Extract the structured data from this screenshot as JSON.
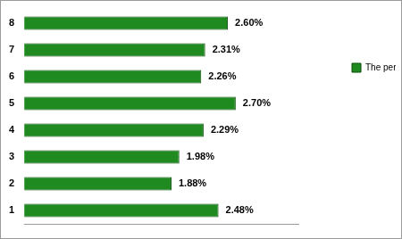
{
  "chart_data": {
    "type": "bar",
    "orientation": "horizontal",
    "categories": [
      "1",
      "2",
      "3",
      "4",
      "5",
      "6",
      "7",
      "8"
    ],
    "series": [
      {
        "name": "The percentage of profit tax in GDP",
        "color": "#1f8a1f",
        "values": [
          2.48,
          1.88,
          1.98,
          2.29,
          2.7,
          2.26,
          2.31,
          2.6
        ],
        "value_labels": [
          "2.48%",
          "1.88%",
          "1.98%",
          "2.29%",
          "2.70%",
          "2.26%",
          "2.31%",
          "2.60%"
        ]
      }
    ],
    "xlim": [
      0,
      3.5
    ],
    "grid": false,
    "legend": "right",
    "data_labels": true,
    "tick_labels": "y"
  }
}
